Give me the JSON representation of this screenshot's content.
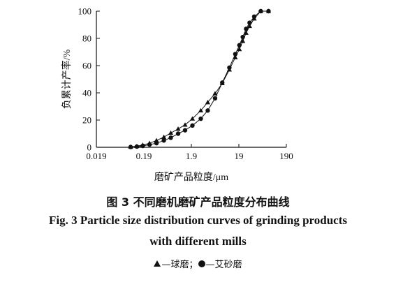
{
  "chart_data": {
    "type": "line",
    "xscale": "log",
    "xlabel": "磨矿产品粒度/μm",
    "ylabel": "负累计产率/%",
    "xlim": [
      0.019,
      190
    ],
    "ylim": [
      0,
      100
    ],
    "xticks": [
      0.019,
      0.19,
      1.9,
      19,
      190
    ],
    "xtick_labels": [
      "0.019",
      "0.19",
      "1.9",
      "19",
      "190"
    ],
    "yticks": [
      0,
      20,
      40,
      60,
      80,
      100
    ],
    "ytick_labels": [
      "0",
      "20",
      "40",
      "60",
      "80",
      "100"
    ],
    "series": [
      {
        "name": "球磨",
        "marker": "triangle",
        "x": [
          0.1,
          0.135,
          0.18,
          0.25,
          0.35,
          0.5,
          0.7,
          1.0,
          1.4,
          2.0,
          3.0,
          4.2,
          6.0,
          8.5,
          12.0,
          16.0,
          19.5,
          23.0,
          27.0,
          32.0,
          40.0,
          55.0,
          80.0
        ],
        "y": [
          0.3,
          0.8,
          1.7,
          3.0,
          5.0,
          7.5,
          10.5,
          13.5,
          16.5,
          21.0,
          27.0,
          33.0,
          39.5,
          47.0,
          57.0,
          66.0,
          72.0,
          78.0,
          84.0,
          89.0,
          94.5,
          100.0,
          100.0
        ]
      },
      {
        "name": "艾砂磨",
        "marker": "circle",
        "x": [
          0.1,
          0.135,
          0.18,
          0.25,
          0.35,
          0.5,
          0.7,
          1.0,
          1.4,
          2.0,
          3.0,
          4.2,
          6.0,
          8.5,
          12.0,
          16.0,
          19.5,
          23.0,
          27.0,
          32.0,
          40.0,
          55.0,
          80.0
        ],
        "y": [
          0.2,
          0.5,
          1.0,
          2.0,
          3.0,
          5.0,
          7.0,
          10.0,
          12.5,
          16.0,
          21.0,
          27.0,
          36.0,
          47.5,
          58.5,
          68.5,
          75.0,
          81.0,
          87.0,
          91.5,
          96.0,
          100.0,
          100.0
        ]
      }
    ]
  },
  "caption": {
    "cn": "图 3   不同磨机磨矿产品粒度分布曲线",
    "en_line1": "Fig. 3   Particle size distribution curves of grinding products",
    "en_line2": "with different mills"
  },
  "legend": {
    "ball_mill": "—球磨；",
    "sand_mill": "—艾砂磨"
  }
}
